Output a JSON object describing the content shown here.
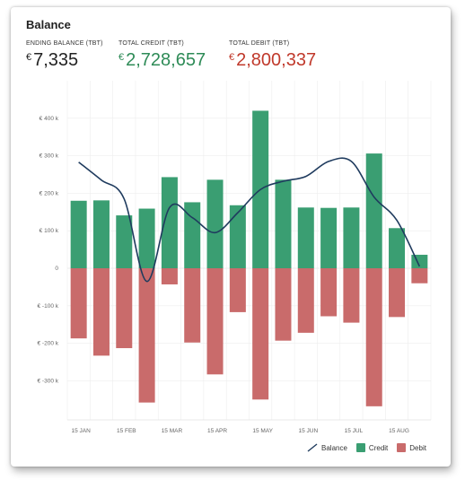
{
  "card": {
    "title": "Balance"
  },
  "kpis": {
    "ending": {
      "label": "ENDING BALANCE (TBT)",
      "currency": "€",
      "value": "7,335"
    },
    "credit": {
      "label": "TOTAL CREDIT (TBT)",
      "currency": "€",
      "value": "2,728,657"
    },
    "debit": {
      "label": "TOTAL DEBIT (TBT)",
      "currency": "€",
      "value": "2,800,337"
    }
  },
  "colors": {
    "credit": "#3a9e72",
    "debit": "#c96b6b",
    "balance": "#1f3b5e",
    "grid": "#eeeeee"
  },
  "chart_data": {
    "type": "bar",
    "ylim": [
      -400,
      430
    ],
    "y_ticks": [
      -300,
      -200,
      -100,
      0,
      100,
      200,
      300,
      400
    ],
    "y_tick_labels": [
      "€ -300 k",
      "€ -200 k",
      "€ -100 k",
      "0",
      "€ 100 k",
      "€ 200 k",
      "€ 300 k",
      "€ 400 k"
    ],
    "x_tick_labels": [
      "15 JAN",
      "15 FEB",
      "15 MAR",
      "15 APR",
      "15 MAY",
      "15 JUN",
      "15 JUL",
      "15 AUG"
    ],
    "series": [
      {
        "name": "Credit",
        "values": [
          180,
          181,
          141,
          159,
          243,
          176,
          236,
          168,
          420,
          236,
          162,
          161,
          162,
          306,
          107,
          36
        ]
      },
      {
        "name": "Debit",
        "values": [
          -187,
          -233,
          -213,
          -358,
          -43,
          -198,
          -283,
          -117,
          -350,
          -193,
          -172,
          -128,
          -145,
          -368,
          -130,
          -40
        ]
      },
      {
        "name": "Balance",
        "values": [
          283,
          235,
          185,
          -35,
          162,
          135,
          95,
          148,
          210,
          232,
          245,
          285,
          285,
          190,
          128,
          5
        ]
      }
    ],
    "legend": [
      "Balance",
      "Credit",
      "Debit"
    ],
    "legend_position": "bottom-right"
  }
}
